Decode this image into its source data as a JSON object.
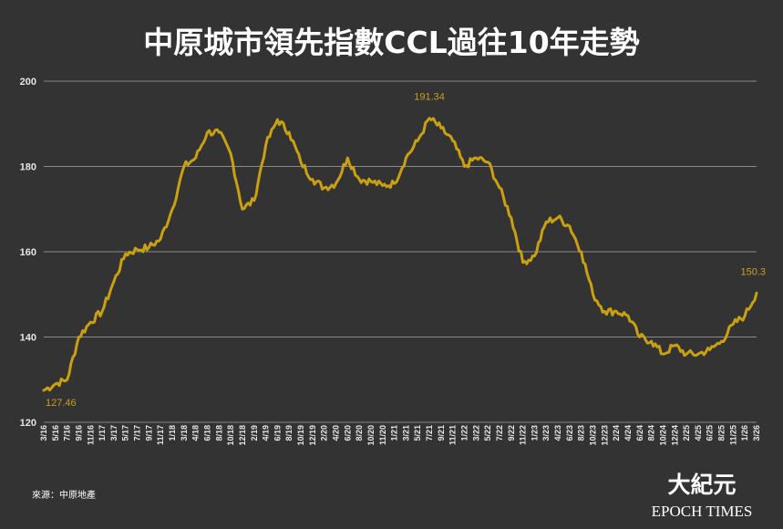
{
  "chart_data": {
    "type": "line",
    "title": "中原城市領先指數CCL過往10年走勢",
    "xlabel": "",
    "ylabel": "",
    "ylim": [
      120,
      200
    ],
    "yticks": [
      120,
      140,
      160,
      180,
      200
    ],
    "grid": true,
    "line_color": "#c9a012",
    "x": [
      "3/16",
      "5/16",
      "7/16",
      "9/16",
      "11/16",
      "1/17",
      "3/17",
      "5/17",
      "7/17",
      "9/17",
      "11/17",
      "1/18",
      "3/18",
      "4/18",
      "6/18",
      "8/18",
      "10/18",
      "12/18",
      "2/19",
      "4/19",
      "6/19",
      "8/19",
      "10/19",
      "12/19",
      "2/20",
      "4/20",
      "6/20",
      "8/20",
      "10/20",
      "11/20",
      "1/21",
      "3/21",
      "5/21",
      "7/21",
      "9/21",
      "11/21",
      "1/22",
      "3/22",
      "5/22",
      "7/22",
      "9/22",
      "11/22",
      "1/23",
      "3/23",
      "4/23",
      "6/23",
      "8/23",
      "10/23",
      "12/23",
      "2/24",
      "4/24",
      "6/24",
      "8/24",
      "10/24",
      "12/24",
      "2/25",
      "4/25",
      "6/25",
      "8/25",
      "11/25",
      "1/26",
      "3/26"
    ],
    "y": [
      127.5,
      129,
      130,
      140,
      143.5,
      146,
      153,
      159.5,
      160.5,
      161,
      163,
      170,
      180,
      182,
      188,
      188,
      183,
      170,
      172,
      185,
      191,
      188,
      181,
      177,
      175,
      176,
      182,
      177,
      176.5,
      175.5,
      176,
      182,
      186,
      191.3,
      189,
      186,
      180,
      182,
      181,
      175,
      168,
      157.5,
      159,
      167,
      168,
      166,
      160,
      150,
      146,
      146,
      145,
      140,
      139,
      136,
      138,
      136,
      136,
      137,
      139,
      143,
      145,
      150.3
    ],
    "annotations": [
      {
        "label": "127.46",
        "x_index": 0
      },
      {
        "label": "191.34",
        "x_index": 33
      },
      {
        "label": "150.3",
        "x_index": 61
      }
    ]
  },
  "source_text": "來源：中原地產",
  "logo": {
    "chinese": "大紀元",
    "english": "EPOCH TIMES"
  }
}
